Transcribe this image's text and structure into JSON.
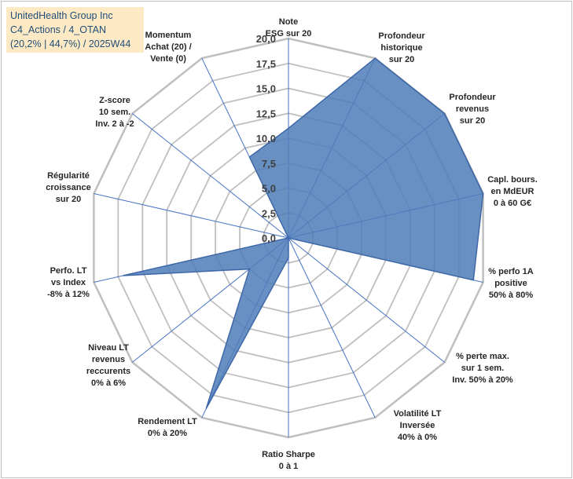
{
  "chart_data": {
    "type": "radar",
    "title": [
      "UnitedHealth Group Inc",
      "C4_Actions / 4_OTAN",
      "(20,2% | 44,7%) / 2025W44"
    ],
    "range": [
      0,
      20
    ],
    "ticks": [
      "0,0",
      "2,5",
      "5,0",
      "7,5",
      "10,0",
      "12,5",
      "15,0",
      "17,5",
      "20,0"
    ],
    "axes": [
      {
        "label": [
          "Note",
          "ESG sur 20"
        ],
        "value": 11
      },
      {
        "label": [
          "Profondeur",
          "historique",
          "sur 20"
        ],
        "value": 20
      },
      {
        "label": [
          "Profondeur",
          "revenus",
          "sur 20"
        ],
        "value": 20
      },
      {
        "label": [
          "Capl. bours.",
          "en MdEUR",
          "0 à 60 G€"
        ],
        "value": 20
      },
      {
        "label": [
          "% perfo 1A",
          "positive",
          "50% à 80%"
        ],
        "value": 19
      },
      {
        "label": [
          "% perte max.",
          "sur 1 sem.",
          "Inv. 50% à 20%"
        ],
        "value": 0
      },
      {
        "label": [
          "Volatilité LT",
          "Inversée",
          "40% à 0%"
        ],
        "value": 0
      },
      {
        "label": [
          "Ratio Sharpe",
          "0 à 1"
        ],
        "value": 2
      },
      {
        "label": [
          "Rendement LT",
          "0% à 20%"
        ],
        "value": 19
      },
      {
        "label": [
          "Niveau LT",
          "revenus",
          "reccurents",
          "0% à 6%"
        ],
        "value": 5
      },
      {
        "label": [
          "Perfo. LT",
          "vs Index",
          "-8% à 12%"
        ],
        "value": 17
      },
      {
        "label": [
          "Régularité",
          "croissance",
          "sur 20"
        ],
        "value": 0
      },
      {
        "label": [
          "Z-score",
          "10 sem.",
          "Inv. 2 à -2"
        ],
        "value": 0
      },
      {
        "label": [
          "Momentum",
          "Achat (20) /",
          "Vente (0)"
        ],
        "value": 9
      }
    ],
    "colors": {
      "fill": "#4f7cb8",
      "stroke": "#3f68a8",
      "grid": "#bfbfbf",
      "axis": "#4472c4"
    }
  }
}
